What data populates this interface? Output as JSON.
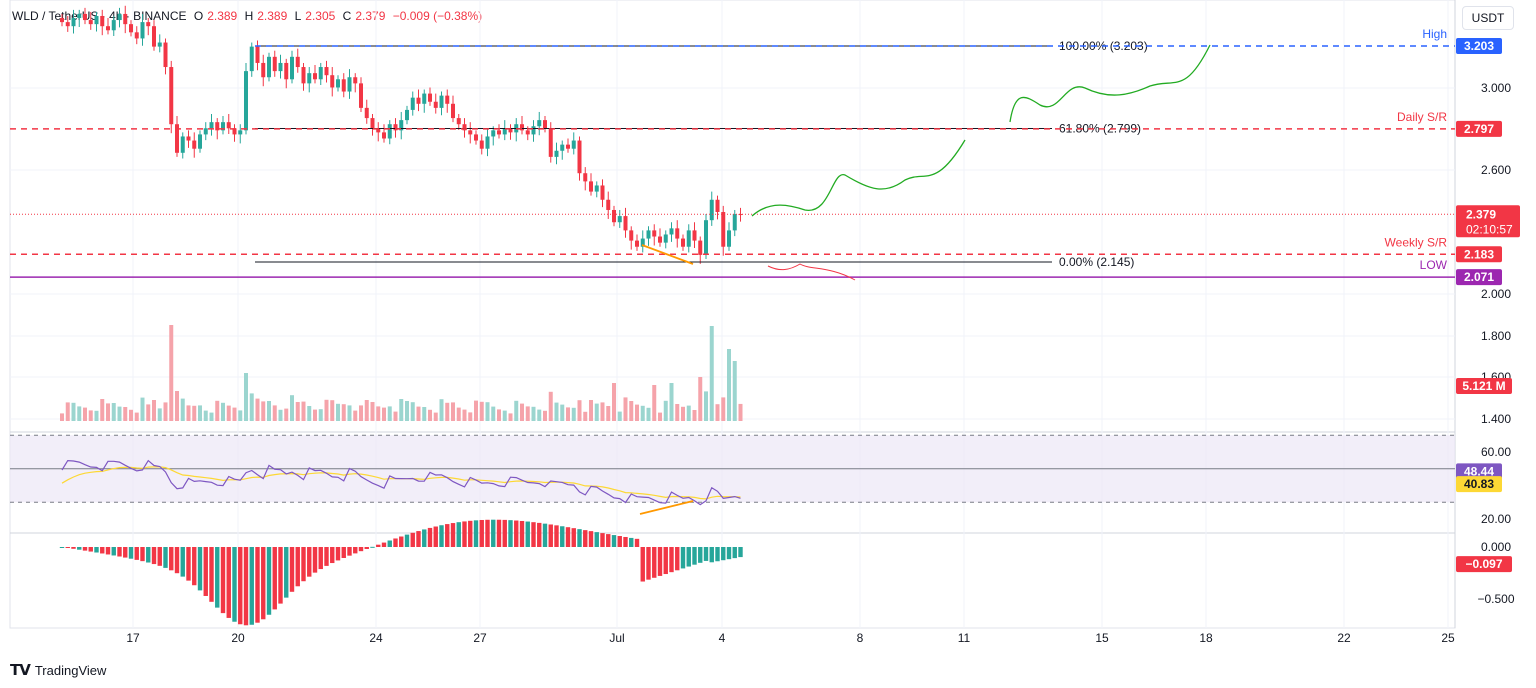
{
  "header": {
    "symbol": "WLD / TetherUS · 4h · BINANCE",
    "open_label": "O",
    "open": "2.389",
    "high_label": "H",
    "high": "2.389",
    "low_label": "L",
    "low": "2.305",
    "close_label": "C",
    "close": "2.379",
    "change": "−0.009 (−0.38%)"
  },
  "currency_button": "USDT",
  "branding": "TradingView",
  "colors": {
    "up": "#26a69a",
    "down": "#f23645",
    "dashed_blue": "#2962ff",
    "dashed_red": "#f23645",
    "low_line": "#9c27b0",
    "rsi_line": "#7e57c2",
    "rsi_ma": "#fdd835",
    "projection": "#22ab22",
    "divergence": "#ff9800"
  },
  "chart_data": {
    "type": "candlestick",
    "timeframe": "4h",
    "x_axis": {
      "tick_labels": [
        "17",
        "20",
        "24",
        "27",
        "Jul",
        "4",
        "8",
        "11",
        "15",
        "18",
        "22",
        "25"
      ]
    },
    "price_axis": {
      "tick_labels": [
        "3.000",
        "2.600",
        "2.000",
        "1.800",
        "1.600",
        "1.400"
      ],
      "range": [
        1.35,
        3.35
      ]
    },
    "levels": [
      {
        "label": "High",
        "value": 3.203,
        "value_text": "3.203",
        "style": "blue-dashed"
      },
      {
        "label": "Daily S/R",
        "value": 2.797,
        "value_text": "2.797",
        "style": "red-dashed"
      },
      {
        "label": "Weekly S/R",
        "value": 2.183,
        "value_text": "2.183",
        "style": "red-dashed"
      },
      {
        "label": "LOW",
        "value": 2.071,
        "value_text": "2.071",
        "style": "purple-solid"
      }
    ],
    "fibonacci": [
      {
        "label": "100.00% (3.203)",
        "value": 3.203
      },
      {
        "label": "61.80% (2.799)",
        "value": 2.799
      },
      {
        "label": "0.00% (2.145)",
        "value": 2.145
      }
    ],
    "last_price": {
      "value": 2.379,
      "value_text": "2.379",
      "countdown": "02:10:57"
    },
    "volume": {
      "last_text": "5.121 M"
    },
    "rsi": {
      "tick_labels": [
        "60.00",
        "20.00"
      ],
      "upper_band": 70,
      "lower_band": 30,
      "rsi_value": 48.44,
      "rsi_text": "48.44",
      "ma_value": 40.83,
      "ma_text": "40.83"
    },
    "macd_histogram": {
      "tick_labels": [
        "0.000",
        "−0.500"
      ],
      "last_value": -0.097,
      "last_text": "−0.097"
    },
    "closes": [
      3.32,
      3.3,
      3.34,
      3.36,
      3.33,
      3.31,
      3.35,
      3.3,
      3.28,
      3.33,
      3.36,
      3.31,
      3.27,
      3.24,
      3.32,
      3.3,
      3.2,
      3.22,
      3.1,
      2.82,
      2.68,
      2.76,
      2.74,
      2.7,
      2.77,
      2.8,
      2.83,
      2.79,
      2.83,
      2.8,
      2.77,
      2.79,
      3.08,
      3.2,
      3.12,
      3.05,
      3.15,
      3.08,
      3.12,
      3.04,
      3.15,
      3.1,
      3.02,
      3.07,
      3.04,
      3.1,
      3.06,
      3.0,
      3.04,
      2.98,
      3.05,
      3.02,
      2.9,
      2.85,
      2.8,
      2.78,
      2.75,
      2.82,
      2.79,
      2.84,
      2.89,
      2.95,
      2.92,
      2.97,
      2.93,
      2.9,
      2.96,
      2.92,
      2.85,
      2.82,
      2.79,
      2.77,
      2.74,
      2.7,
      2.76,
      2.79,
      2.77,
      2.8,
      2.78,
      2.82,
      2.79,
      2.77,
      2.81,
      2.84,
      2.8,
      2.66,
      2.69,
      2.72,
      2.7,
      2.74,
      2.58,
      2.54,
      2.49,
      2.52,
      2.45,
      2.4,
      2.34,
      2.37,
      2.3,
      2.25,
      2.22,
      2.26,
      2.3,
      2.27,
      2.24,
      2.28,
      2.31,
      2.26,
      2.22,
      2.3,
      2.25,
      2.18,
      2.35,
      2.45,
      2.39,
      2.22,
      2.3,
      2.38,
      2.379
    ]
  }
}
